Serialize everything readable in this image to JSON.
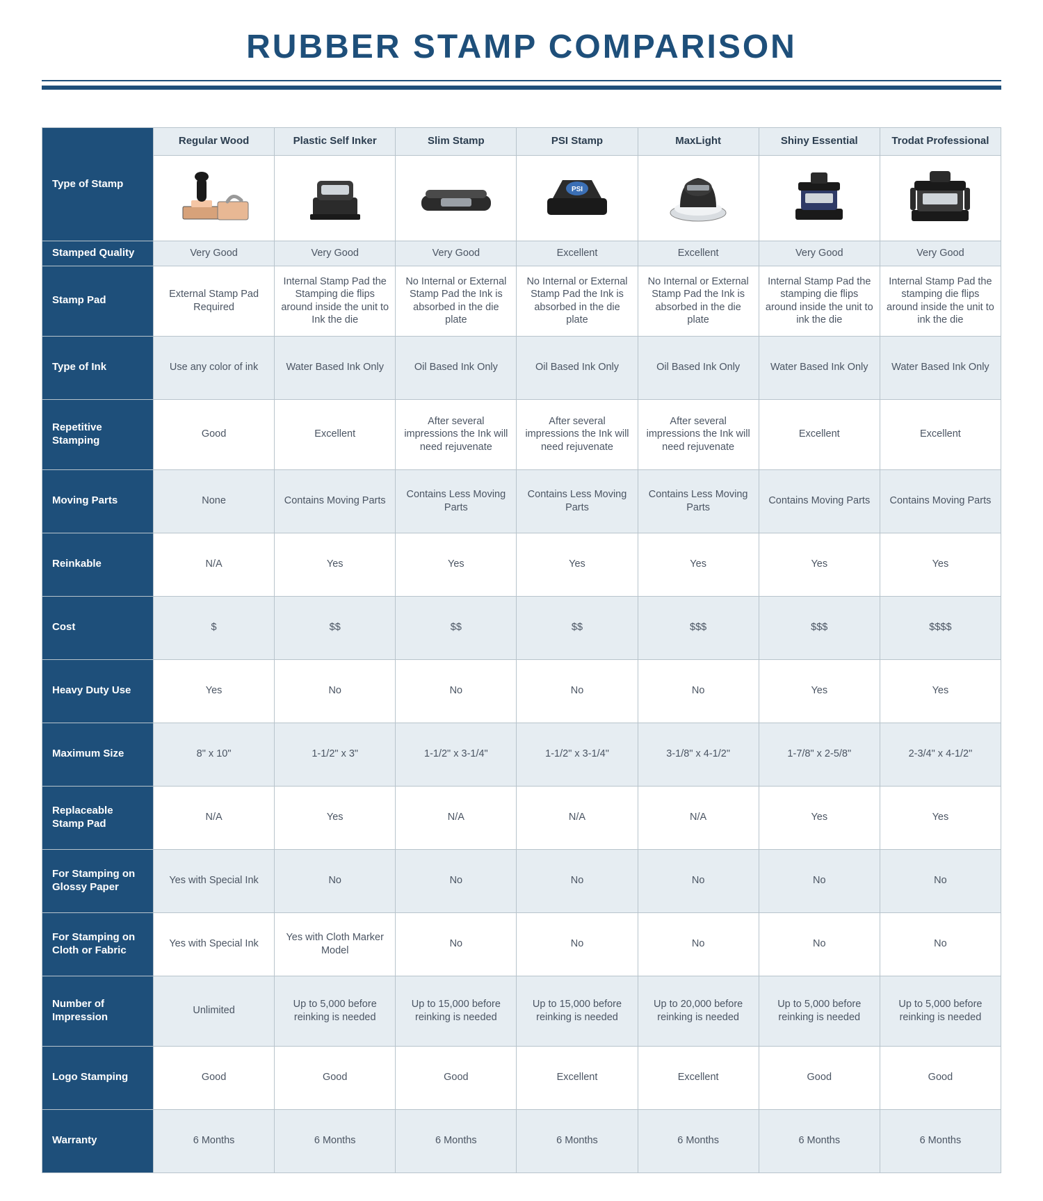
{
  "title": "RUBBER STAMP COMPARISON",
  "colors": {
    "title": "#1e4f7a",
    "header_bg": "#1e4f7a",
    "header_text": "#ffffff",
    "col_header_bg": "#e6edf2",
    "col_header_text": "#2c3e50",
    "row_alt_bg": "#e6edf2",
    "row_bg": "#ffffff",
    "border": "#b8c4cc",
    "cell_text": "#4b5563",
    "rule": "#1e4f7a"
  },
  "table": {
    "row_label_header": "Type of Stamp",
    "columns": [
      "Regular Wood",
      "Plastic Self Inker",
      "Slim Stamp",
      "PSI Stamp",
      "MaxLight",
      "Shiny Essential",
      "Trodat Professional"
    ],
    "icons": [
      "wood-stamp-icon",
      "self-inker-icon",
      "slim-stamp-icon",
      "psi-stamp-icon",
      "maxlight-stamp-icon",
      "shiny-stamp-icon",
      "trodat-stamp-icon"
    ],
    "rows": [
      {
        "label": "Stamped Quality",
        "height": "normal",
        "cells": [
          "Very Good",
          "Very Good",
          "Very Good",
          "Excellent",
          "Excellent",
          "Very Good",
          "Very Good"
        ]
      },
      {
        "label": "Stamp Pad",
        "height": "xtall",
        "cells": [
          "External Stamp Pad Required",
          "Internal Stamp Pad the Stamping die flips around inside the unit to Ink the die",
          "No Internal or External Stamp Pad the Ink is absorbed in the die plate",
          "No Internal or External Stamp Pad the Ink is absorbed in the die plate",
          "No Internal or External Stamp Pad the Ink is absorbed in the die plate",
          "Internal Stamp Pad the stamping die flips around inside the unit to ink the die",
          "Internal Stamp Pad the stamping die flips around inside the unit to ink the die"
        ]
      },
      {
        "label": "Type of Ink",
        "height": "tall",
        "cells": [
          "Use any color of ink",
          "Water Based Ink Only",
          "Oil Based Ink Only",
          "Oil Based Ink Only",
          "Oil Based Ink Only",
          "Water Based Ink Only",
          "Water Based Ink Only"
        ]
      },
      {
        "label": "Repetitive Stamping",
        "height": "xtall",
        "cells": [
          "Good",
          "Excellent",
          "After several impressions the Ink will need rejuvenate",
          "After several impressions the Ink will need rejuvenate",
          "After several impressions the Ink will need rejuvenate",
          "Excellent",
          "Excellent"
        ]
      },
      {
        "label": "Moving Parts",
        "height": "tall",
        "cells": [
          "None",
          "Contains Moving Parts",
          "Contains Less Moving Parts",
          "Contains Less Moving Parts",
          "Contains Less Moving Parts",
          "Contains Moving Parts",
          "Contains Moving Parts"
        ]
      },
      {
        "label": "Reinkable",
        "height": "tall",
        "cells": [
          "N/A",
          "Yes",
          "Yes",
          "Yes",
          "Yes",
          "Yes",
          "Yes"
        ]
      },
      {
        "label": "Cost",
        "height": "tall",
        "cells": [
          "$",
          "$$",
          "$$",
          "$$",
          "$$$",
          "$$$",
          "$$$$"
        ]
      },
      {
        "label": "Heavy Duty Use",
        "height": "tall",
        "cells": [
          "Yes",
          "No",
          "No",
          "No",
          "No",
          "Yes",
          "Yes"
        ]
      },
      {
        "label": "Maximum Size",
        "height": "tall",
        "cells": [
          "8\" x 10\"",
          "1-1/2\" x 3\"",
          "1-1/2\" x 3-1/4\"",
          "1-1/2\" x 3-1/4\"",
          "3-1/8\" x 4-1/2\"",
          "1-7/8\" x 2-5/8\"",
          "2-3/4\" x 4-1/2\""
        ]
      },
      {
        "label": "Replaceable Stamp Pad",
        "height": "tall",
        "cells": [
          "N/A",
          "Yes",
          "N/A",
          "N/A",
          "N/A",
          "Yes",
          "Yes"
        ]
      },
      {
        "label": "For Stamping on Glossy Paper",
        "height": "tall",
        "cells": [
          "Yes with Special Ink",
          "No",
          "No",
          "No",
          "No",
          "No",
          "No"
        ]
      },
      {
        "label": "For Stamping on Cloth or Fabric",
        "height": "tall",
        "cells": [
          "Yes with Special Ink",
          "Yes with Cloth Marker Model",
          "No",
          "No",
          "No",
          "No",
          "No"
        ]
      },
      {
        "label": "Number of Impression",
        "height": "xtall",
        "cells": [
          "Unlimited",
          "Up to 5,000 before reinking is needed",
          "Up to 15,000 before reinking is needed",
          "Up to 15,000 before reinking is needed",
          "Up to 20,000 before reinking is needed",
          "Up to 5,000 before reinking is needed",
          "Up to 5,000 before reinking is needed"
        ]
      },
      {
        "label": "Logo Stamping",
        "height": "tall",
        "cells": [
          "Good",
          "Good",
          "Good",
          "Excellent",
          "Excellent",
          "Good",
          "Good"
        ]
      },
      {
        "label": "Warranty",
        "height": "tall",
        "cells": [
          "6 Months",
          "6 Months",
          "6 Months",
          "6 Months",
          "6 Months",
          "6 Months",
          "6 Months"
        ]
      }
    ]
  }
}
